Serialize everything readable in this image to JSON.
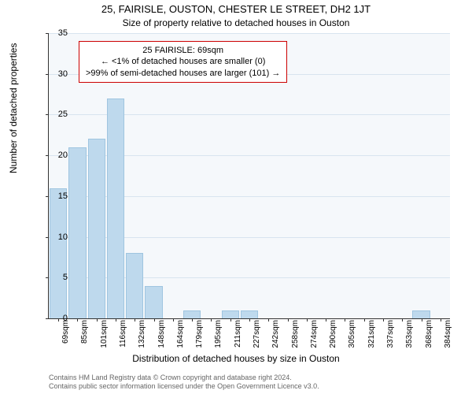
{
  "header": {
    "title": "25, FAIRISLE, OUSTON, CHESTER LE STREET, DH2 1JT",
    "subtitle": "Size of property relative to detached houses in Ouston"
  },
  "chart": {
    "type": "histogram",
    "ylim": [
      0,
      35
    ],
    "ytick_step": 5,
    "yticks": [
      0,
      5,
      10,
      15,
      20,
      25,
      30,
      35
    ],
    "ylabel": "Number of detached properties",
    "xlabel": "Distribution of detached houses by size in Ouston",
    "categories": [
      "69sqm",
      "85sqm",
      "101sqm",
      "116sqm",
      "132sqm",
      "148sqm",
      "164sqm",
      "179sqm",
      "195sqm",
      "211sqm",
      "227sqm",
      "242sqm",
      "258sqm",
      "274sqm",
      "290sqm",
      "305sqm",
      "321sqm",
      "337sqm",
      "353sqm",
      "368sqm",
      "384sqm"
    ],
    "values": [
      16,
      21,
      22,
      27,
      8,
      4,
      0,
      1,
      0,
      1,
      1,
      0,
      0,
      0,
      0,
      0,
      0,
      0,
      0,
      1,
      0
    ],
    "bar_color": "#bed9ed",
    "bar_border_color": "#9fc5e0",
    "background_color": "#f5f8fb",
    "grid_color": "#d8e4ef",
    "bar_width": 0.92
  },
  "annotation": {
    "line1": "25 FAIRISLE: 69sqm",
    "line2": "← <1% of detached houses are smaller (0)",
    "line3": ">99% of semi-detached houses are larger (101) →",
    "border_color": "#cc0000",
    "bg_color": "#ffffff"
  },
  "footer": {
    "line1": "Contains HM Land Registry data © Crown copyright and database right 2024.",
    "line2": "Contains public sector information licensed under the Open Government Licence v3.0."
  }
}
